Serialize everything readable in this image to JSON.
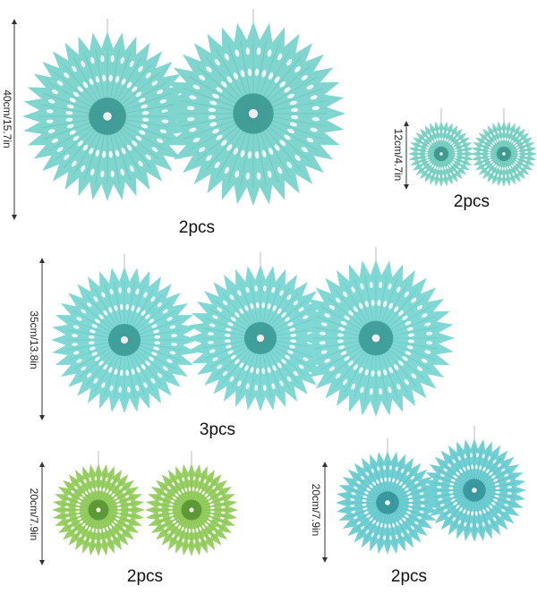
{
  "groups": [
    {
      "size": "40cm/15.7in",
      "quantity": "2pcs"
    },
    {
      "size": "12cm/4.7in",
      "quantity": "2pcs"
    },
    {
      "size": "35cm/13.8in",
      "quantity": "3pcs"
    },
    {
      "size": "20cm/7.9in",
      "quantity": "2pcs"
    },
    {
      "size": "20cm/7.9in",
      "quantity": "2pcs"
    }
  ]
}
